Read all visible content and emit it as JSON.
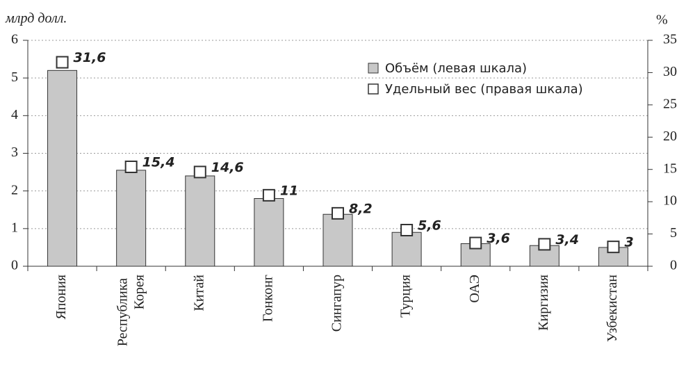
{
  "chart_data": {
    "type": "bar",
    "y_label": "млрд долл.",
    "y2_label": "%",
    "categories": [
      "Япония",
      "Республика Корея",
      "Китай",
      "Гонконг",
      "Сингапур",
      "Турция",
      "ОАЭ",
      "Киргизия",
      "Узбекистан"
    ],
    "series": [
      {
        "name": "Объём (левая шкала)",
        "color": "#c8c8c8",
        "values": [
          5.2,
          2.55,
          2.4,
          1.8,
          1.38,
          0.9,
          0.6,
          0.55,
          0.5
        ]
      },
      {
        "name": "Удельный вес (правая шкала)",
        "color": "#ffffff",
        "axis": "y2",
        "values": [
          31.6,
          15.4,
          14.6,
          11,
          8.2,
          5.6,
          3.6,
          3.4,
          3
        ],
        "value_labels": [
          "31,6",
          "15,4",
          "14,6",
          "11",
          "8,2",
          "5,6",
          "3,6",
          "3,4",
          "3"
        ]
      }
    ],
    "ylim": [
      0,
      6
    ],
    "yticks": [
      0,
      1,
      2,
      3,
      4,
      5,
      6
    ],
    "y2lim": [
      0,
      35
    ],
    "y2ticks": [
      0,
      5,
      10,
      15,
      20,
      25,
      30,
      35
    ],
    "grid": true
  }
}
